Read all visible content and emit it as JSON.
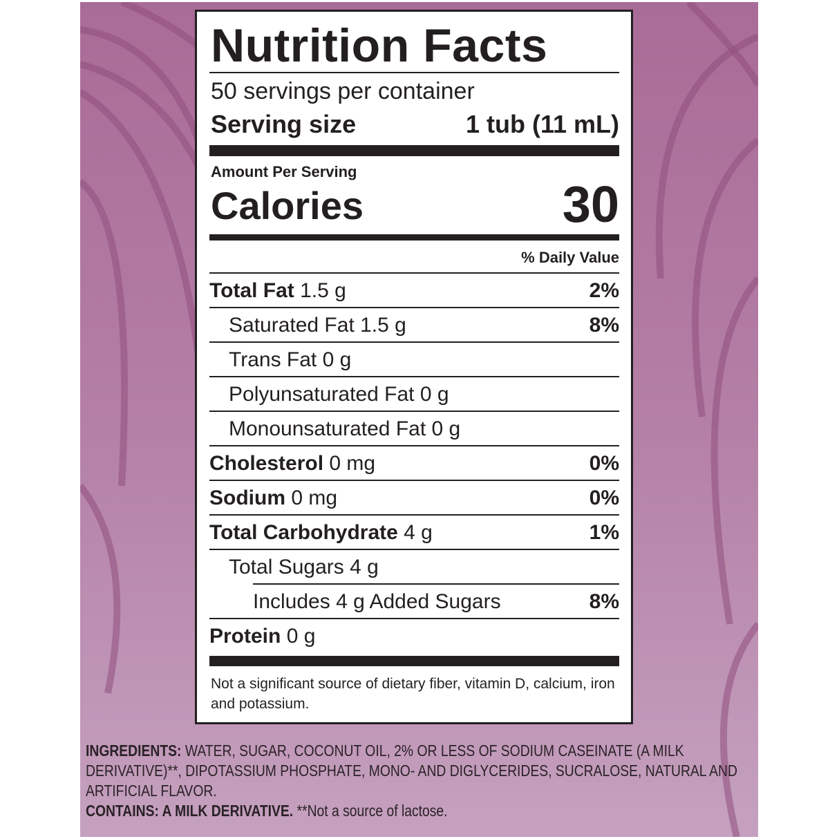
{
  "label": {
    "title": "Nutrition Facts",
    "servings": "50 servings per container",
    "serving_size_label": "Serving size",
    "serving_size_value": "1 tub (11 mL)",
    "amount_per_serving": "Amount Per Serving",
    "calories_label": "Calories",
    "calories_value": "30",
    "daily_value_header": "% Daily Value",
    "rows": [
      {
        "name": "Total Fat",
        "amount": "1.5 g",
        "dv": "2%"
      },
      {
        "name": "Saturated Fat 1.5 g",
        "amount": "",
        "dv": "8%"
      },
      {
        "name": "Trans Fat 0 g",
        "amount": "",
        "dv": ""
      },
      {
        "name": "Polyunsaturated Fat 0 g",
        "amount": "",
        "dv": ""
      },
      {
        "name": "Monounsaturated Fat 0 g",
        "amount": "",
        "dv": ""
      },
      {
        "name": "Cholesterol",
        "amount": "0 mg",
        "dv": "0%"
      },
      {
        "name": "Sodium",
        "amount": "0 mg",
        "dv": "0%"
      },
      {
        "name": "Total Carbohydrate",
        "amount": "4 g",
        "dv": "1%"
      },
      {
        "name": "Total Sugars 4 g",
        "amount": "",
        "dv": ""
      },
      {
        "name": "Includes 4 g Added Sugars",
        "amount": "",
        "dv": "8%"
      },
      {
        "name": "Protein",
        "amount": "0 g",
        "dv": ""
      }
    ],
    "footnote": "Not a significant source of dietary fiber, vitamin D, calcium, iron and potassium."
  },
  "ingredients": {
    "label": "INGREDIENTS:",
    "text": "WATER, SUGAR, COCONUT OIL, 2% OR LESS OF SODIUM CASEINATE (A MILK DERIVATIVE)**, DIPOTASSIUM PHOSPHATE, MONO- AND DIGLYCERIDES, SUCRALOSE, NATURAL AND ARTIFICIAL FLAVOR.",
    "contains_label": "CONTAINS: A MILK DERIVATIVE.",
    "contains_note": "**Not a source of lactose."
  },
  "colors": {
    "background": "#a96b97",
    "text": "#231f20"
  }
}
